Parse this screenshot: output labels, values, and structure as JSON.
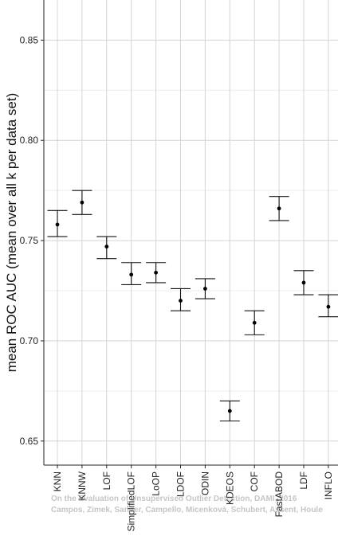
{
  "chart_data": {
    "type": "errorbar",
    "ylabel": "mean ROC AUC (mean over all k per data set)",
    "ylim": [
      0.638,
      0.87
    ],
    "yticks": [
      0.65,
      0.7,
      0.75,
      0.8,
      0.85
    ],
    "ytick_labels": [
      "0.65",
      "0.70",
      "0.75",
      "0.80",
      "0.85"
    ],
    "grid": true,
    "categories": [
      "KNN",
      "KNNW",
      "LOF",
      "SimplifiedLOF",
      "LoOP",
      "LDOF",
      "ODIN",
      "KDEOS",
      "COF",
      "FastABOD",
      "LDF",
      "INFLO"
    ],
    "series": [
      {
        "mean": [
          0.758,
          0.769,
          0.747,
          0.733,
          0.734,
          0.72,
          0.726,
          0.665,
          0.709,
          0.766,
          0.729,
          0.717
        ],
        "lower": [
          0.752,
          0.763,
          0.741,
          0.728,
          0.729,
          0.715,
          0.721,
          0.66,
          0.703,
          0.76,
          0.723,
          0.712
        ],
        "upper": [
          0.765,
          0.775,
          0.752,
          0.739,
          0.739,
          0.726,
          0.731,
          0.67,
          0.715,
          0.772,
          0.735,
          0.723
        ]
      }
    ]
  },
  "watermark": {
    "line1": "On the Evaluation of Unsupervised Outlier Detection, DAMI, 2016",
    "line2": "Campos, Zimek, Sander, Campello, Micenková, Schubert, Assent, Houle"
  }
}
